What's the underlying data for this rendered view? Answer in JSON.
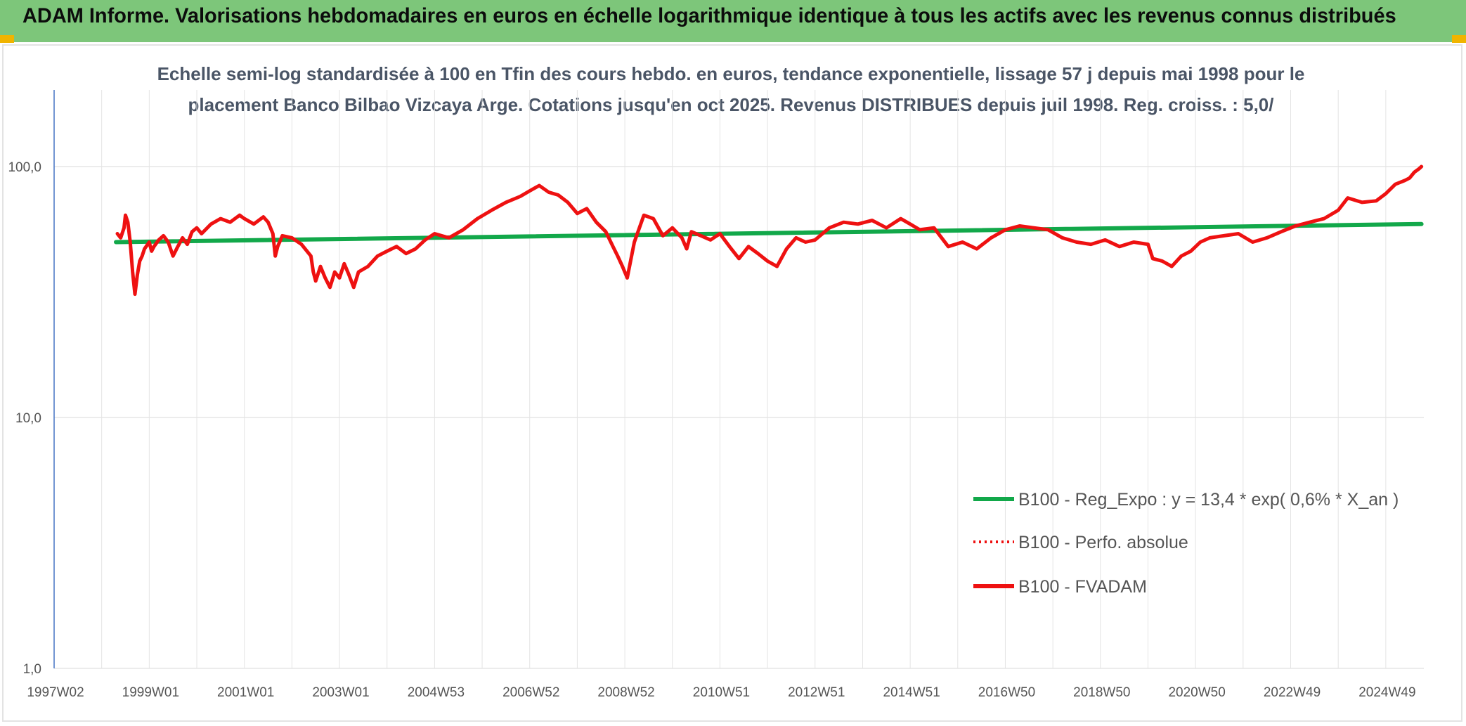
{
  "header": {
    "title": "ADAM Informe. Valorisations hebdomadaires en euros en échelle logarithmique identique à tous les actifs avec les revenus connus distribués"
  },
  "colors": {
    "banner": "#7dc67a",
    "corner": "#f0b400",
    "regression": "#12a84a",
    "fvadam": "#ee1111",
    "perfo": "#ee1111"
  },
  "chart_data": {
    "type": "line",
    "subtitle_lines": [
      "Echelle semi-log standardisée à 100 en Tfin des cours hebdo. en euros, tendance exponentielle, lissage 57 j depuis mai 1998 pour le",
      "placement Banco Bilbao Vizcaya Arge. Cotations jusqu'en oct 2025. Revenus DISTRIBUES depuis juil 1998. Reg. croiss. : 5,0/"
    ],
    "y_scale": "log",
    "ylim": [
      1,
      200
    ],
    "xlim": [
      1997.0,
      2025.8
    ],
    "y_ticks": [
      {
        "value": 1,
        "label": "1,0"
      },
      {
        "value": 10,
        "label": "10,0"
      },
      {
        "value": 100,
        "label": "100,0"
      }
    ],
    "x_ticks": [
      {
        "x": 1997.0,
        "label": "1997W02"
      },
      {
        "x": 1999.0,
        "label": "1999W01"
      },
      {
        "x": 2001.0,
        "label": "2001W01"
      },
      {
        "x": 2003.0,
        "label": "2003W01"
      },
      {
        "x": 2005.0,
        "label": "2004W53"
      },
      {
        "x": 2007.0,
        "label": "2006W52"
      },
      {
        "x": 2009.0,
        "label": "2008W52"
      },
      {
        "x": 2011.0,
        "label": "2010W51"
      },
      {
        "x": 2013.0,
        "label": "2012W51"
      },
      {
        "x": 2015.0,
        "label": "2014W51"
      },
      {
        "x": 2017.0,
        "label": "2016W50"
      },
      {
        "x": 2019.0,
        "label": "2018W50"
      },
      {
        "x": 2021.0,
        "label": "2020W50"
      },
      {
        "x": 2023.0,
        "label": "2022W49"
      },
      {
        "x": 2025.0,
        "label": "2024W49"
      }
    ],
    "grid": {
      "vertical": true,
      "horizontal": true
    },
    "legend_position": "bottom-right",
    "series": [
      {
        "name": "B100 - Reg_Expo : y = 13,4 * exp( 0,6% *  X_an )",
        "style": "solid",
        "color": "#12a84a",
        "x": [
          1998.3,
          2025.75
        ],
        "y": [
          50.0,
          59.0
        ]
      },
      {
        "name": "B100 - Perfo. absolue",
        "style": "dotted",
        "color": "#ee1111",
        "x": [],
        "y": []
      },
      {
        "name": "B100 - FVADAM",
        "style": "solid",
        "color": "#ee1111",
        "x": [
          1998.33,
          1998.4,
          1998.47,
          1998.5,
          1998.55,
          1998.6,
          1998.65,
          1998.7,
          1998.75,
          1998.8,
          1998.85,
          1998.9,
          1999.0,
          1999.05,
          1999.1,
          1999.2,
          1999.3,
          1999.4,
          1999.5,
          1999.6,
          1999.7,
          1999.8,
          1999.9,
          2000.0,
          2000.1,
          2000.3,
          2000.5,
          2000.7,
          2000.9,
          2001.0,
          2001.2,
          2001.4,
          2001.5,
          2001.6,
          2001.65,
          2001.7,
          2001.8,
          2002.0,
          2002.2,
          2002.4,
          2002.45,
          2002.5,
          2002.6,
          2002.7,
          2002.8,
          2002.9,
          2003.0,
          2003.1,
          2003.2,
          2003.3,
          2003.4,
          2003.6,
          2003.8,
          2004.0,
          2004.2,
          2004.4,
          2004.6,
          2004.8,
          2005.0,
          2005.3,
          2005.6,
          2005.9,
          2006.2,
          2006.5,
          2006.8,
          2007.0,
          2007.2,
          2007.4,
          2007.6,
          2007.8,
          2008.0,
          2008.2,
          2008.4,
          2008.6,
          2008.75,
          2008.85,
          2008.95,
          2009.05,
          2009.2,
          2009.4,
          2009.6,
          2009.8,
          2010.0,
          2010.2,
          2010.3,
          2010.4,
          2010.6,
          2010.8,
          2011.0,
          2011.2,
          2011.4,
          2011.6,
          2011.8,
          2012.0,
          2012.2,
          2012.4,
          2012.6,
          2012.8,
          2013.0,
          2013.3,
          2013.6,
          2013.9,
          2014.2,
          2014.5,
          2014.8,
          2015.0,
          2015.2,
          2015.5,
          2015.8,
          2016.1,
          2016.4,
          2016.7,
          2017.0,
          2017.3,
          2017.6,
          2017.9,
          2018.2,
          2018.5,
          2018.8,
          2019.1,
          2019.4,
          2019.7,
          2020.0,
          2020.1,
          2020.3,
          2020.5,
          2020.7,
          2020.9,
          2021.1,
          2021.3,
          2021.6,
          2021.9,
          2022.2,
          2022.5,
          2022.8,
          2023.1,
          2023.4,
          2023.7,
          2024.0,
          2024.2,
          2024.5,
          2024.8,
          2025.0,
          2025.2,
          2025.4,
          2025.5,
          2025.6,
          2025.7,
          2025.75
        ],
        "y": [
          54,
          52,
          57,
          64,
          60,
          50,
          38,
          31,
          37,
          42,
          44,
          47,
          50,
          46,
          48,
          51,
          53,
          50,
          44,
          48,
          52,
          49,
          55,
          57,
          54,
          59,
          62,
          60,
          64,
          62,
          59,
          63,
          60,
          54,
          44,
          48,
          53,
          52,
          49,
          44,
          38,
          35,
          40,
          36,
          33,
          38,
          36,
          41,
          37,
          33,
          38,
          40,
          44,
          46,
          48,
          45,
          47,
          51,
          54,
          52,
          56,
          62,
          67,
          72,
          76,
          80,
          84,
          79,
          77,
          72,
          65,
          68,
          60,
          55,
          48,
          44,
          40,
          36,
          50,
          64,
          62,
          53,
          57,
          52,
          47,
          55,
          53,
          51,
          54,
          48,
          43,
          48,
          45,
          42,
          40,
          47,
          52,
          50,
          51,
          57,
          60,
          59,
          61,
          57,
          62,
          59,
          56,
          57,
          48,
          50,
          47,
          52,
          56,
          58,
          57,
          56,
          52,
          50,
          49,
          51,
          48,
          50,
          49,
          43,
          42,
          40,
          44,
          46,
          50,
          52,
          53,
          54,
          50,
          52,
          55,
          58,
          60,
          62,
          67,
          75,
          72,
          73,
          78,
          85,
          88,
          90,
          95,
          98,
          100
        ]
      }
    ]
  }
}
